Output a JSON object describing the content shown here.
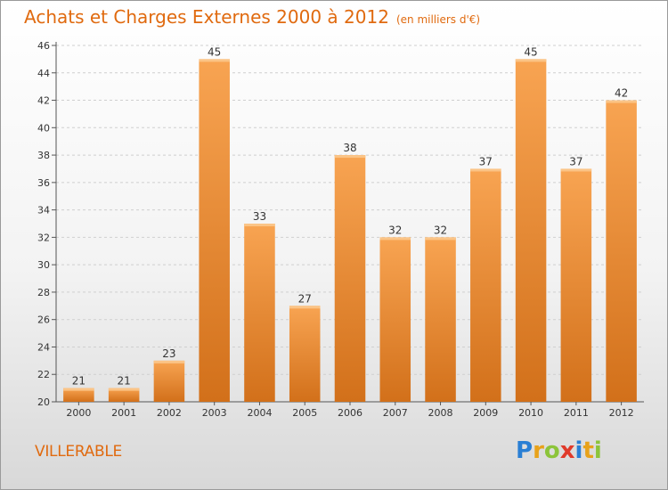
{
  "chart_data": {
    "type": "bar",
    "title": "Achats et Charges Externes 2000 à 2012",
    "subtitle": "(en milliers d'€)",
    "categories": [
      "2000",
      "2001",
      "2002",
      "2003",
      "2004",
      "2005",
      "2006",
      "2007",
      "2008",
      "2009",
      "2010",
      "2011",
      "2012"
    ],
    "values": [
      21,
      21,
      23,
      45,
      33,
      27,
      38,
      32,
      32,
      37,
      45,
      37,
      42
    ],
    "ylim": [
      20,
      46
    ],
    "yticks": [
      20,
      22,
      24,
      26,
      28,
      30,
      32,
      34,
      36,
      38,
      40,
      42,
      44,
      46
    ],
    "grid": true,
    "bar_color_top": "#f8a452",
    "bar_color_bottom": "#d2701a"
  },
  "commune": "VILLERABLE",
  "logo": {
    "letters": [
      {
        "char": "P",
        "color": "#2a7fd4"
      },
      {
        "char": "r",
        "color": "#e8a21a"
      },
      {
        "char": "o",
        "color": "#8cc43a"
      },
      {
        "char": "x",
        "color": "#e03a2a"
      },
      {
        "char": "i",
        "color": "#2a7fd4"
      },
      {
        "char": "t",
        "color": "#e8a21a"
      },
      {
        "char": "i",
        "color": "#8cc43a"
      }
    ]
  }
}
